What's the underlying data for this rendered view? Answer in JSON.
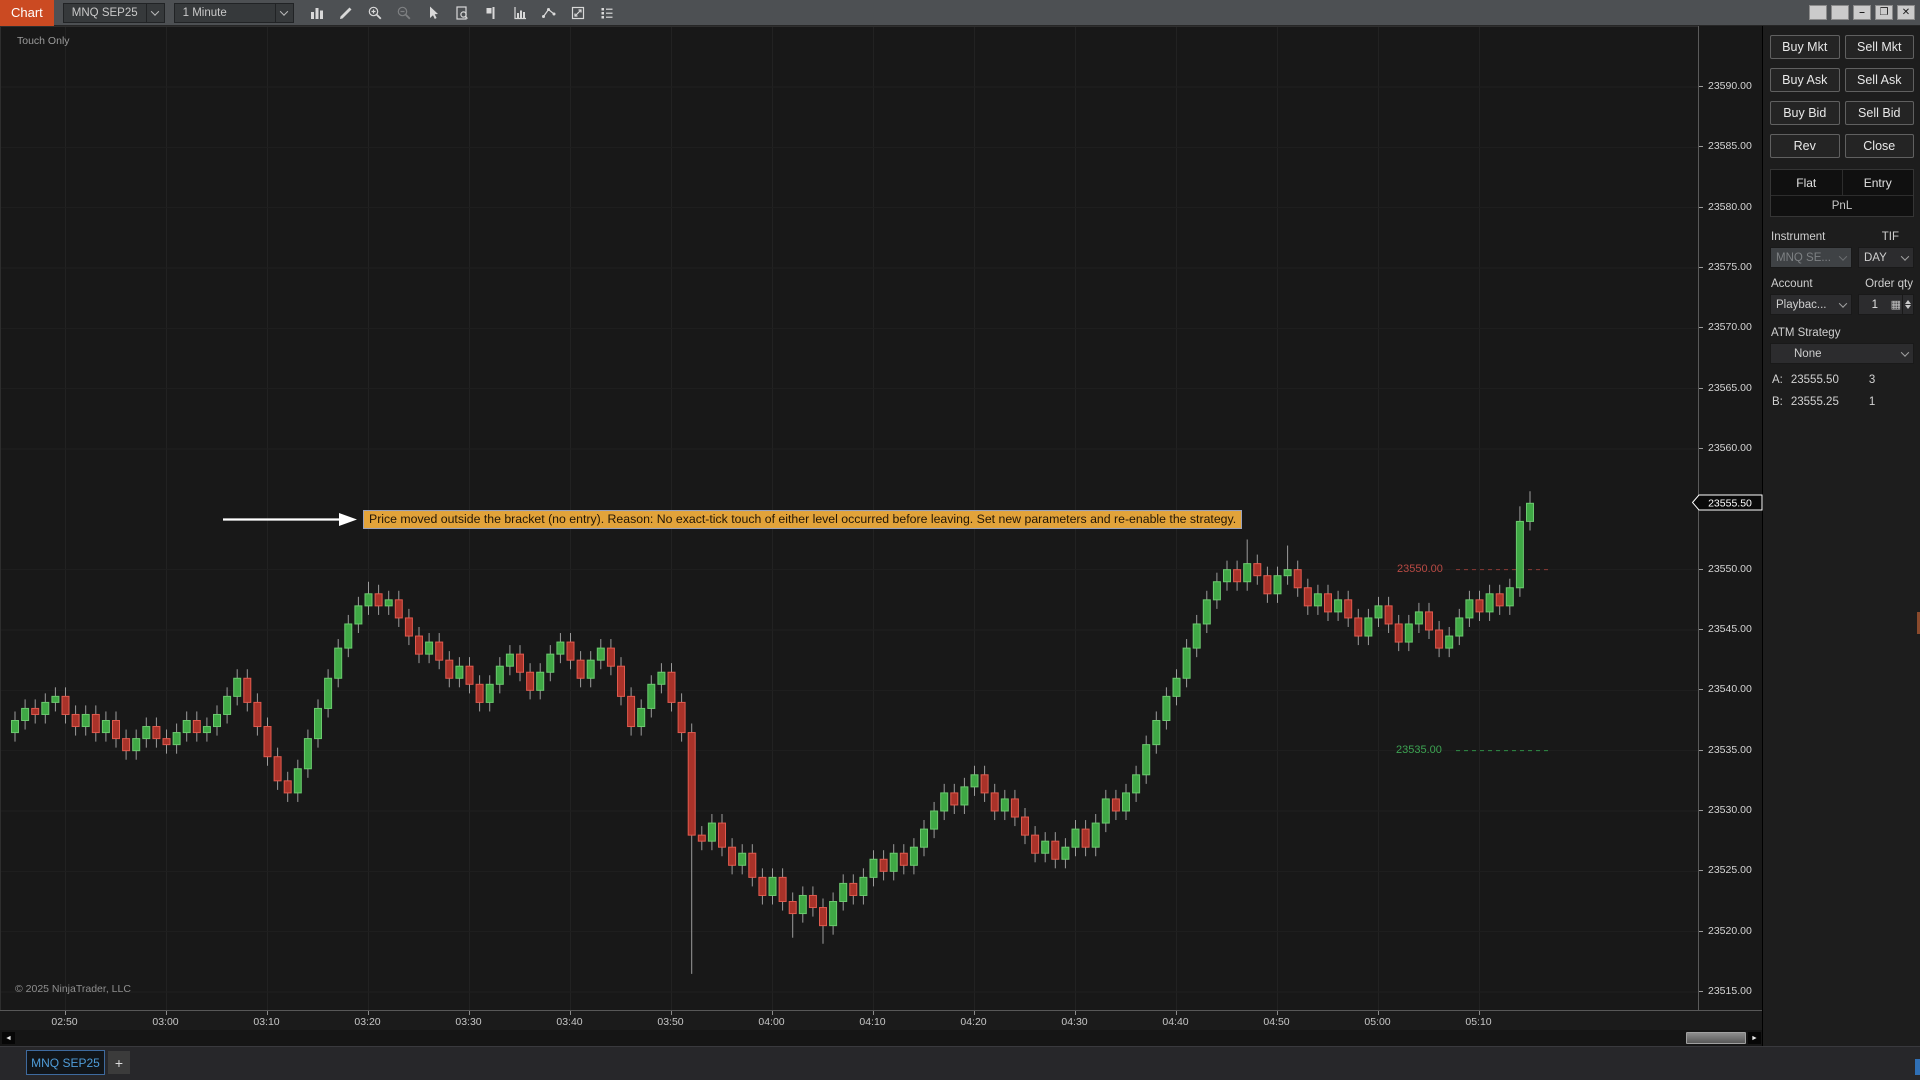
{
  "toolbar": {
    "chart_button": "Chart",
    "instrument": "MNQ SEP25",
    "interval": "1 Minute",
    "icons": [
      "chart-style-icon",
      "drawing-tools-icon",
      "zoom-in-icon",
      "zoom-out-icon",
      "pointer-icon",
      "report-icon",
      "chart-trader-icon",
      "indicators-icon",
      "strategies-icon",
      "snapshot-icon",
      "properties-icon"
    ],
    "window_controls": [
      "panel-toggle-1",
      "panel-toggle-2",
      "minimize",
      "restore",
      "close"
    ],
    "minimize_glyph": "–",
    "restore_glyph": "❐",
    "close_glyph": "✕"
  },
  "chart": {
    "mode_label": "Touch Only",
    "copyright": "© 2025 NinjaTrader, LLC",
    "alert_text": "Price moved outside the bracket (no entry). Reason: No exact-tick touch of either level occurred before leaving. Set new parameters and re-enable the strategy.",
    "accent_colors": {
      "alert_bg": "#e2a33a",
      "up": "#3fa845",
      "down": "#c23b35"
    }
  },
  "price_axis": {
    "ticks": [
      "23590.00",
      "23585.00",
      "23580.00",
      "23575.00",
      "23570.00",
      "23565.00",
      "23560.00",
      "23550.00",
      "23545.00",
      "23540.00",
      "23535.00",
      "23530.00",
      "23525.00",
      "23520.00",
      "23515.00"
    ]
  },
  "time_axis": {
    "labels": [
      "02:50",
      "03:00",
      "03:10",
      "03:20",
      "03:30",
      "03:40",
      "03:50",
      "04:00",
      "04:10",
      "04:20",
      "04:30",
      "04:40",
      "04:50",
      "05:00",
      "05:10"
    ]
  },
  "chart_data": {
    "type": "candlestick",
    "symbol": "MNQ SEP25",
    "interval": "1 Minute",
    "start_time": "02:45",
    "minutes_per_bar": 1,
    "ylim": [
      23515,
      23590
    ],
    "grid": true,
    "first_open": 23536.5,
    "default_wick": 0.75,
    "closes": [
      23537.5,
      23538.5,
      23538.0,
      23539.0,
      23539.5,
      23538.0,
      23537.0,
      23538.0,
      23536.5,
      23537.5,
      23536.0,
      23535.0,
      23536.0,
      23537.0,
      23536.0,
      23535.5,
      23536.5,
      23537.5,
      23536.5,
      23537.0,
      23538.0,
      23539.5,
      23541.0,
      23539.0,
      23537.0,
      23534.5,
      23532.5,
      23531.5,
      23533.5,
      23536.0,
      23538.5,
      23541.0,
      23543.5,
      23545.5,
      23547.0,
      23548.0,
      23547.0,
      23547.5,
      23546.0,
      23544.5,
      23543.0,
      23544.0,
      23542.5,
      23541.0,
      23542.0,
      23540.5,
      23539.0,
      23540.5,
      23542.0,
      23543.0,
      23541.5,
      23540.0,
      23541.5,
      23543.0,
      23544.0,
      23542.5,
      23541.0,
      23542.5,
      23543.5,
      23542.0,
      23539.5,
      23537.0,
      23538.5,
      23540.5,
      23541.5,
      23539.0,
      23536.5,
      23528.0,
      23527.5,
      23529.0,
      23527.0,
      23525.5,
      23526.5,
      23524.5,
      23523.0,
      23524.5,
      23522.5,
      23521.5,
      23523.0,
      23522.0,
      23520.5,
      23522.5,
      23524.0,
      23523.0,
      23524.5,
      23526.0,
      23525.0,
      23526.5,
      23525.5,
      23527.0,
      23528.5,
      23530.0,
      23531.5,
      23530.5,
      23532.0,
      23533.0,
      23531.5,
      23530.0,
      23531.0,
      23529.5,
      23528.0,
      23526.5,
      23527.5,
      23526.0,
      23527.0,
      23528.5,
      23527.0,
      23529.0,
      23531.0,
      23530.0,
      23531.5,
      23533.0,
      23535.5,
      23537.5,
      23539.5,
      23541.0,
      23543.5,
      23545.5,
      23547.5,
      23549.0,
      23550.0,
      23549.0,
      23550.5,
      23549.5,
      23548.0,
      23549.5,
      23550.0,
      23548.5,
      23547.0,
      23548.0,
      23546.5,
      23547.5,
      23546.0,
      23544.5,
      23546.0,
      23547.0,
      23545.5,
      23544.0,
      23545.5,
      23546.5,
      23545.0,
      23543.5,
      23544.5,
      23546.0,
      23547.5,
      23546.5,
      23548.0,
      23547.0,
      23548.5,
      23554.0,
      23555.5
    ],
    "wick_overrides": {
      "35": {
        "high": 23549.0
      },
      "67": {
        "low": 23516.5
      },
      "77": {
        "low": 23519.5
      },
      "80": {
        "low": 23519.0
      },
      "122": {
        "high": 23552.5
      },
      "126": {
        "high": 23552.0
      },
      "149": {
        "high": 23555.25
      },
      "150": {
        "high": 23556.5
      }
    },
    "up_color": "#3fa845",
    "up_edge": "#6cc96f",
    "down_color": "#a93229",
    "down_edge": "#e05a4e",
    "wick_color": "#9b9b9b",
    "levels": [
      {
        "value": 23550.0,
        "label": "23550.00",
        "color": "#8b3a36",
        "style": "dashed",
        "role": "upper-bracket"
      },
      {
        "value": 23535.0,
        "label": "23535.00",
        "color": "#2f8f46",
        "style": "dashed",
        "role": "lower-bracket"
      }
    ],
    "last_price": {
      "value": 23555.5,
      "label": "23555.50"
    }
  },
  "trade_panel": {
    "buttons": [
      "Buy Mkt",
      "Sell Mkt",
      "Buy Ask",
      "Sell Ask",
      "Buy Bid",
      "Sell Bid",
      "Rev",
      "Close"
    ],
    "flat_label": "Flat",
    "entry_label": "Entry",
    "pnl_label": "PnL",
    "instrument_label": "Instrument",
    "instrument_value": "MNQ SE...",
    "tif_label": "TIF",
    "tif_value": "DAY",
    "account_label": "Account",
    "account_value": "Playbac...",
    "order_qty_label": "Order qty",
    "order_qty_value": "1",
    "atm_label": "ATM Strategy",
    "atm_value": "None",
    "ask_row": {
      "prefix": "A:",
      "price": "23555.50",
      "size": "3"
    },
    "bid_row": {
      "prefix": "B:",
      "price": "23555.25",
      "size": "1"
    }
  },
  "tab_bar": {
    "active_tab": "MNQ SEP25",
    "add_tab_label": "+"
  }
}
